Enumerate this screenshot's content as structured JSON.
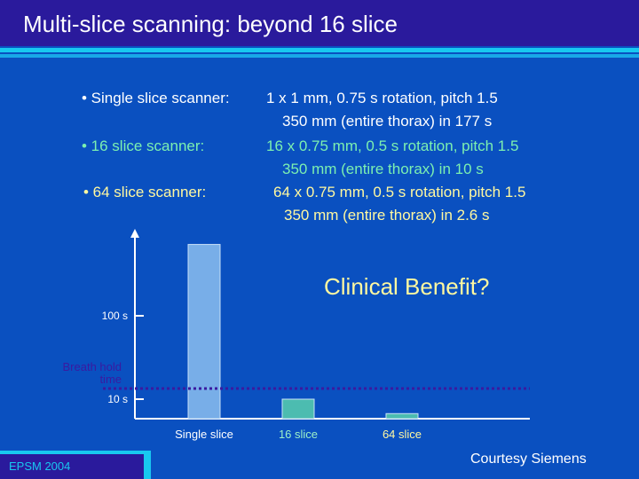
{
  "title": "Multi-slice scanning: beyond 16 slice",
  "specs": [
    {
      "label": "• Single slice scanner:",
      "detail": "1 x 1 mm, 0.75 s rotation, pitch 1.5",
      "result": "350 mm (entire thorax) in 177 s",
      "color": "#ffffff"
    },
    {
      "label": "• 16 slice scanner:",
      "detail": "16 x 0.75 mm, 0.5 s rotation, pitch 1.5",
      "result": "350 mm (entire thorax) in 10 s",
      "color": "#7cf0b0"
    },
    {
      "label": "• 64 slice scanner:",
      "detail": "64 x 0.75 mm, 0.5 s rotation, pitch 1.5",
      "result": "350 mm (entire thorax) in 2.6 s",
      "color": "#fff8a0"
    }
  ],
  "clinical_text": "Clinical Benefit?",
  "footer": {
    "left": "EPSM 2004",
    "right": "Courtesy Siemens"
  },
  "chart_data": {
    "type": "bar",
    "categories": [
      "Single slice",
      "16 slice",
      "64  slice"
    ],
    "values": [
      177,
      10,
      2.6
    ],
    "ytick_labels": [
      "100 s",
      "10 s"
    ],
    "threshold_label_line1": "Breath hold",
    "threshold_label_line2": "time",
    "threshold_value": 20,
    "bar_colors": [
      "#78aee8",
      "#4cbcb0",
      "#4cbcb0"
    ],
    "threshold_color": "#3a1aa0"
  }
}
